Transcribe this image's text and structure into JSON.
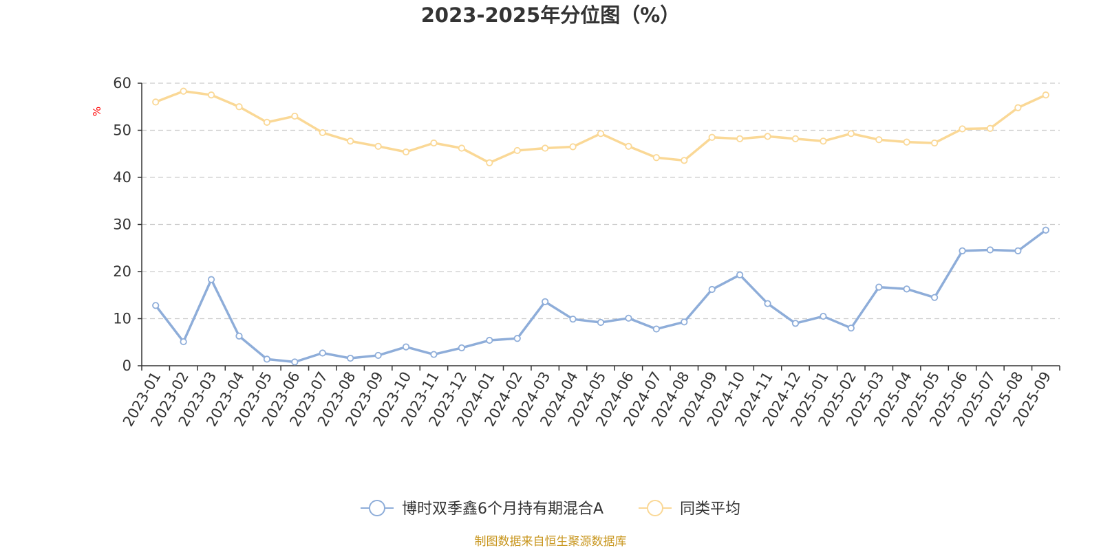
{
  "chart_data": {
    "type": "line",
    "title": "2023-2025年分位图（%）",
    "ylabel": "%",
    "xlabel": "",
    "ylim": [
      0,
      60
    ],
    "yticks": [
      0,
      10,
      20,
      30,
      40,
      50,
      60
    ],
    "grid": true,
    "legend_position": "bottom-center",
    "categories": [
      "2023-01",
      "2023-02",
      "2023-03",
      "2023-04",
      "2023-05",
      "2023-06",
      "2023-07",
      "2023-08",
      "2023-09",
      "2023-10",
      "2023-11",
      "2023-12",
      "2024-01",
      "2024-02",
      "2024-03",
      "2024-04",
      "2024-05",
      "2024-06",
      "2024-07",
      "2024-08",
      "2024-09",
      "2024-10",
      "2024-11",
      "2024-12",
      "2025-01",
      "2025-02",
      "2025-03",
      "2025-04",
      "2025-05",
      "2025-06",
      "2025-07",
      "2025-08",
      "2025-09"
    ],
    "series": [
      {
        "name": "博时双季鑫6个月持有期混合A",
        "color": "#8eadd9",
        "values": [
          12.8,
          5.1,
          18.3,
          6.3,
          1.4,
          0.8,
          2.7,
          1.6,
          2.2,
          4.0,
          2.4,
          3.8,
          5.4,
          5.8,
          13.6,
          9.9,
          9.2,
          10.1,
          7.8,
          9.3,
          16.2,
          19.3,
          13.2,
          9.0,
          10.5,
          8.0,
          16.7,
          16.3,
          14.5,
          24.4,
          24.6,
          24.4,
          28.8
        ]
      },
      {
        "name": "同类平均",
        "color": "#fad896",
        "values": [
          56.0,
          58.3,
          57.5,
          55.0,
          51.7,
          53.0,
          49.5,
          47.7,
          46.6,
          45.4,
          47.3,
          46.2,
          43.1,
          45.7,
          46.2,
          46.5,
          49.3,
          46.6,
          44.2,
          43.6,
          48.5,
          48.2,
          48.7,
          48.2,
          47.7,
          49.3,
          48.0,
          47.5,
          47.3,
          50.3,
          50.4,
          54.8,
          57.5
        ]
      }
    ],
    "source": "制图数据来自恒生聚源数据库"
  }
}
